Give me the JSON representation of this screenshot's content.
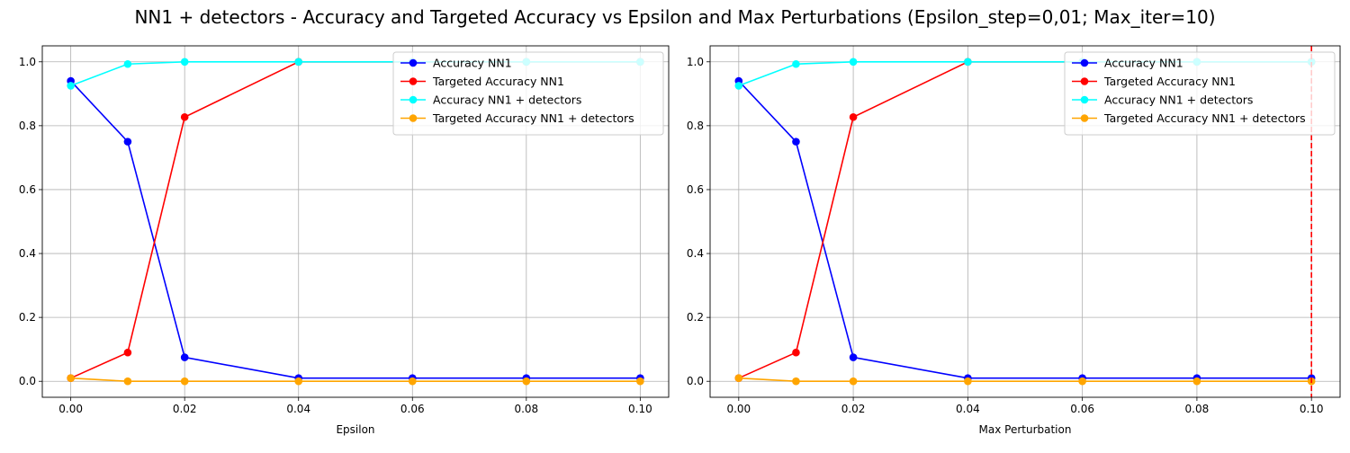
{
  "figure": {
    "title": "NN1 + detectors - Accuracy and Targeted Accuracy vs Epsilon and Max Perturbations (Epsilon_step=0,01; Max_iter=10)"
  },
  "chart_data": [
    {
      "type": "line",
      "title": "",
      "xlabel": "Epsilon",
      "ylabel": "",
      "x": [
        0.0,
        0.01,
        0.02,
        0.04,
        0.06,
        0.08,
        0.1
      ],
      "xticks": [
        "0.00",
        "0.02",
        "0.04",
        "0.06",
        "0.08",
        "0.10"
      ],
      "yticks": [
        "0.0",
        "0.2",
        "0.4",
        "0.6",
        "0.8",
        "1.0"
      ],
      "xlim": [
        -0.005,
        0.105
      ],
      "ylim": [
        -0.05,
        1.05
      ],
      "grid": true,
      "legend_position": "top-right",
      "series": [
        {
          "name": "Accuracy NN1",
          "color": "#0000ff",
          "values": [
            0.94,
            0.75,
            0.075,
            0.01,
            0.01,
            0.01,
            0.01
          ]
        },
        {
          "name": "Targeted Accuracy NN1",
          "color": "#ff0000",
          "values": [
            0.01,
            0.09,
            0.827,
            1.0,
            1.0,
            1.0,
            1.0
          ]
        },
        {
          "name": "Accuracy NN1 + detectors",
          "color": "#00ffff",
          "values": [
            0.925,
            0.993,
            1.0,
            1.0,
            1.0,
            1.0,
            1.0
          ]
        },
        {
          "name": "Targeted Accuracy NN1 + detectors",
          "color": "#ffa500",
          "values": [
            0.01,
            0.0,
            0.0,
            0.0,
            0.0,
            0.0,
            0.0
          ]
        }
      ]
    },
    {
      "type": "line",
      "title": "",
      "xlabel": "Max Perturbation",
      "ylabel": "",
      "x": [
        0.0,
        0.01,
        0.02,
        0.04,
        0.06,
        0.08,
        0.1
      ],
      "xticks": [
        "0.00",
        "0.02",
        "0.04",
        "0.06",
        "0.08",
        "0.10"
      ],
      "yticks": [
        "0.0",
        "0.2",
        "0.4",
        "0.6",
        "0.8",
        "1.0"
      ],
      "xlim": [
        -0.005,
        0.105
      ],
      "ylim": [
        -0.05,
        1.05
      ],
      "grid": true,
      "legend_position": "top-right",
      "vline": {
        "x": 0.1,
        "color": "#ff0000",
        "style": "dashed"
      },
      "series": [
        {
          "name": "Accuracy NN1",
          "color": "#0000ff",
          "values": [
            0.94,
            0.75,
            0.075,
            0.01,
            0.01,
            0.01,
            0.01
          ]
        },
        {
          "name": "Targeted Accuracy NN1",
          "color": "#ff0000",
          "values": [
            0.01,
            0.09,
            0.827,
            1.0,
            1.0,
            1.0,
            1.0
          ]
        },
        {
          "name": "Accuracy NN1 + detectors",
          "color": "#00ffff",
          "values": [
            0.925,
            0.993,
            1.0,
            1.0,
            1.0,
            1.0,
            1.0
          ]
        },
        {
          "name": "Targeted Accuracy NN1 + detectors",
          "color": "#ffa500",
          "values": [
            0.01,
            0.0,
            0.0,
            0.0,
            0.0,
            0.0,
            0.0
          ]
        }
      ]
    }
  ]
}
